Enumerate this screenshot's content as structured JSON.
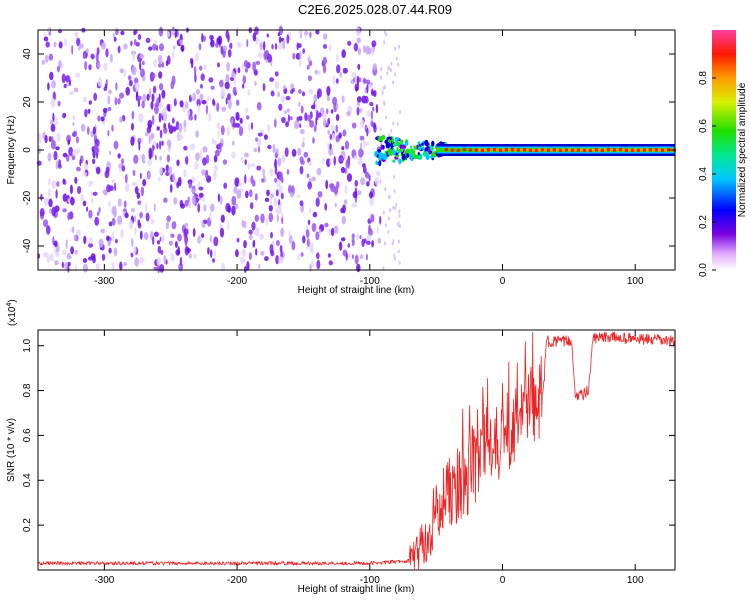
{
  "title": "C2E6.2025.028.07.44.R09",
  "colors": {
    "snr_line": "#ee2222",
    "axis": "#000000",
    "noise_dots": "#6a0de0",
    "background": "#ffffff"
  },
  "chart_data": [
    {
      "type": "heatmap",
      "name": "spectrogram",
      "xlabel": "Height of straight line (km)",
      "ylabel": "Frequency (Hz)",
      "xlim": [
        -350,
        130
      ],
      "ylim": [
        -50,
        50
      ],
      "xticks": [
        -300,
        -200,
        -100,
        0,
        100
      ],
      "yticks": [
        -40,
        -20,
        0,
        20,
        40
      ],
      "noise_region": {
        "x": [
          -350,
          -92
        ],
        "y": [
          -50,
          50
        ]
      },
      "signal_track": {
        "frequency_hz": 0,
        "x_start": -95,
        "x_end": 130
      },
      "colorbar": {
        "label": "Normalized spectral amplitude",
        "range": [
          0,
          1
        ],
        "ticks": [
          "0.0",
          "0.2",
          "0.4",
          "0.6",
          "0.8"
        ]
      }
    },
    {
      "type": "line",
      "name": "snr",
      "xlabel": "Height of straight line (km)",
      "ylabel": "SNR (10 * v/v)",
      "scale_label": "(x10",
      "scale_exponent": "4",
      "scale_suffix": ")",
      "xlim": [
        -350,
        130
      ],
      "ylim": [
        0,
        1.07
      ],
      "xticks": [
        -300,
        -200,
        -100,
        0,
        100
      ],
      "yticks": [
        0.2,
        0.4,
        0.6,
        0.8,
        1.0
      ],
      "ytick_labels": [
        "0.2",
        "0.4",
        "0.6",
        "0.8",
        "1.0"
      ],
      "profile": {
        "x": [
          -350,
          -100,
          -70,
          -55,
          -45,
          -35,
          -25,
          -15,
          -5,
          5,
          15,
          25,
          31,
          33,
          45,
          52,
          55,
          60,
          65,
          68,
          80,
          100,
          130
        ],
        "y": [
          0.03,
          0.03,
          0.04,
          0.15,
          0.28,
          0.38,
          0.43,
          0.5,
          0.56,
          0.62,
          0.68,
          0.72,
          0.8,
          1.02,
          1.02,
          1.02,
          0.78,
          0.78,
          0.8,
          1.03,
          1.04,
          1.03,
          1.02
        ]
      }
    }
  ]
}
